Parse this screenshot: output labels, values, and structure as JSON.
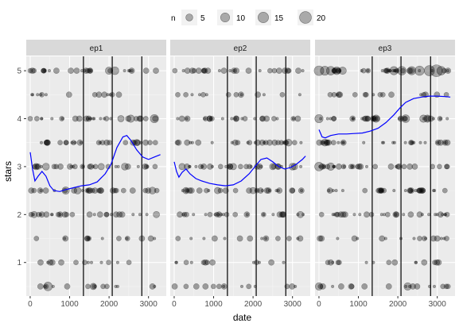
{
  "chart_data": {
    "type": "scatter",
    "xlabel": "date",
    "ylabel": "stars",
    "xlim": [
      -100,
      3450
    ],
    "ylim": [
      0.3,
      5.3
    ],
    "x_ticks": [
      0,
      1000,
      2000,
      3000
    ],
    "y_ticks": [
      1,
      2,
      3,
      4,
      5
    ],
    "grid": true,
    "legend": {
      "title": "n",
      "placement": "top",
      "entries": [
        5,
        10,
        15,
        20
      ]
    },
    "panels": [
      {
        "name": "ep1",
        "vlines": [
          1350,
          2080,
          2830
        ],
        "smooth": [
          [
            0,
            3.3
          ],
          [
            60,
            2.95
          ],
          [
            120,
            2.7
          ],
          [
            200,
            2.8
          ],
          [
            300,
            2.9
          ],
          [
            400,
            2.8
          ],
          [
            500,
            2.6
          ],
          [
            600,
            2.5
          ],
          [
            750,
            2.48
          ],
          [
            900,
            2.52
          ],
          [
            1100,
            2.56
          ],
          [
            1300,
            2.6
          ],
          [
            1500,
            2.62
          ],
          [
            1700,
            2.68
          ],
          [
            1900,
            2.85
          ],
          [
            2050,
            3.05
          ],
          [
            2200,
            3.4
          ],
          [
            2350,
            3.62
          ],
          [
            2450,
            3.65
          ],
          [
            2550,
            3.55
          ],
          [
            2700,
            3.35
          ],
          [
            2850,
            3.2
          ],
          [
            3000,
            3.15
          ],
          [
            3150,
            3.2
          ],
          [
            3300,
            3.25
          ]
        ],
        "points": [
          {
            "x": 450,
            "y": 0.5,
            "n": 9
          },
          {
            "x": 3150,
            "y": 4,
            "n": 8
          },
          {
            "x": 2150,
            "y": 5,
            "n": 7
          },
          {
            "x": 2000,
            "y": 5,
            "n": 6
          },
          {
            "x": 2550,
            "y": 4,
            "n": 6
          },
          {
            "x": 900,
            "y": 2.5,
            "n": 6
          },
          {
            "x": 1200,
            "y": 2.5,
            "n": 5
          },
          {
            "x": 2400,
            "y": 3,
            "n": 5
          },
          {
            "x": 3100,
            "y": 2.5,
            "n": 5
          },
          {
            "x": 400,
            "y": 3,
            "n": 5
          },
          {
            "x": 150,
            "y": 3,
            "n": 4
          },
          {
            "x": 2700,
            "y": 3.5,
            "n": 4
          },
          {
            "x": 2300,
            "y": 4,
            "n": 4
          },
          {
            "x": 1800,
            "y": 3,
            "n": 4
          },
          {
            "x": 100,
            "y": 2,
            "n": 4
          },
          {
            "x": 1600,
            "y": 0.5,
            "n": 4
          },
          {
            "x": 3200,
            "y": 2,
            "n": 4
          }
        ]
      },
      {
        "name": "ep2",
        "vlines": [
          1350,
          2080,
          2830
        ],
        "smooth": [
          [
            0,
            3.1
          ],
          [
            60,
            2.9
          ],
          [
            120,
            2.78
          ],
          [
            200,
            2.88
          ],
          [
            300,
            2.95
          ],
          [
            400,
            2.85
          ],
          [
            550,
            2.75
          ],
          [
            700,
            2.7
          ],
          [
            900,
            2.65
          ],
          [
            1100,
            2.62
          ],
          [
            1300,
            2.6
          ],
          [
            1500,
            2.62
          ],
          [
            1700,
            2.7
          ],
          [
            1900,
            2.85
          ],
          [
            2050,
            3.0
          ],
          [
            2200,
            3.15
          ],
          [
            2350,
            3.18
          ],
          [
            2500,
            3.1
          ],
          [
            2650,
            3.0
          ],
          [
            2800,
            2.95
          ],
          [
            2950,
            2.98
          ],
          [
            3100,
            3.05
          ],
          [
            3250,
            3.15
          ],
          [
            3330,
            3.22
          ]
        ],
        "points": [
          {
            "x": 3000,
            "y": 3,
            "n": 5
          },
          {
            "x": 2900,
            "y": 3.5,
            "n": 5
          },
          {
            "x": 3050,
            "y": 3,
            "n": 4
          },
          {
            "x": 200,
            "y": 3,
            "n": 4
          },
          {
            "x": 2000,
            "y": 2.5,
            "n": 4
          },
          {
            "x": 1100,
            "y": 2.5,
            "n": 4
          },
          {
            "x": 300,
            "y": 2.5,
            "n": 4
          },
          {
            "x": 2500,
            "y": 3,
            "n": 4
          },
          {
            "x": 3200,
            "y": 2,
            "n": 4
          },
          {
            "x": 1500,
            "y": 3,
            "n": 4
          }
        ]
      },
      {
        "name": "ep3",
        "vlines": [
          1350,
          2080,
          2830
        ],
        "smooth": [
          [
            0,
            3.77
          ],
          [
            80,
            3.62
          ],
          [
            160,
            3.6
          ],
          [
            300,
            3.65
          ],
          [
            500,
            3.68
          ],
          [
            700,
            3.68
          ],
          [
            900,
            3.69
          ],
          [
            1100,
            3.7
          ],
          [
            1300,
            3.74
          ],
          [
            1500,
            3.8
          ],
          [
            1700,
            3.92
          ],
          [
            1900,
            4.08
          ],
          [
            2050,
            4.22
          ],
          [
            2200,
            4.34
          ],
          [
            2400,
            4.42
          ],
          [
            2600,
            4.45
          ],
          [
            2800,
            4.47
          ],
          [
            3000,
            4.47
          ],
          [
            3200,
            4.46
          ],
          [
            3330,
            4.45
          ]
        ],
        "points": [
          {
            "x": 2980,
            "y": 5,
            "n": 20
          },
          {
            "x": 2800,
            "y": 5,
            "n": 14
          },
          {
            "x": 0,
            "y": 5,
            "n": 12
          },
          {
            "x": 2550,
            "y": 5,
            "n": 11
          },
          {
            "x": 150,
            "y": 5,
            "n": 10
          },
          {
            "x": 3100,
            "y": 5,
            "n": 9
          },
          {
            "x": 300,
            "y": 5,
            "n": 9
          },
          {
            "x": 2100,
            "y": 5,
            "n": 9
          },
          {
            "x": 0,
            "y": 3,
            "n": 9
          },
          {
            "x": 0,
            "y": 4,
            "n": 8
          },
          {
            "x": 2350,
            "y": 5,
            "n": 8
          },
          {
            "x": 1900,
            "y": 5,
            "n": 8
          },
          {
            "x": 450,
            "y": 5,
            "n": 7
          },
          {
            "x": 2200,
            "y": 4,
            "n": 7
          },
          {
            "x": 0,
            "y": 0.5,
            "n": 6
          },
          {
            "x": 2250,
            "y": 0.5,
            "n": 6
          },
          {
            "x": 300,
            "y": 3,
            "n": 6
          },
          {
            "x": 1450,
            "y": 4,
            "n": 6
          },
          {
            "x": 2750,
            "y": 4,
            "n": 6
          },
          {
            "x": 150,
            "y": 3.5,
            "n": 5
          },
          {
            "x": 600,
            "y": 5,
            "n": 6
          },
          {
            "x": 2650,
            "y": 4,
            "n": 6
          }
        ]
      }
    ]
  }
}
